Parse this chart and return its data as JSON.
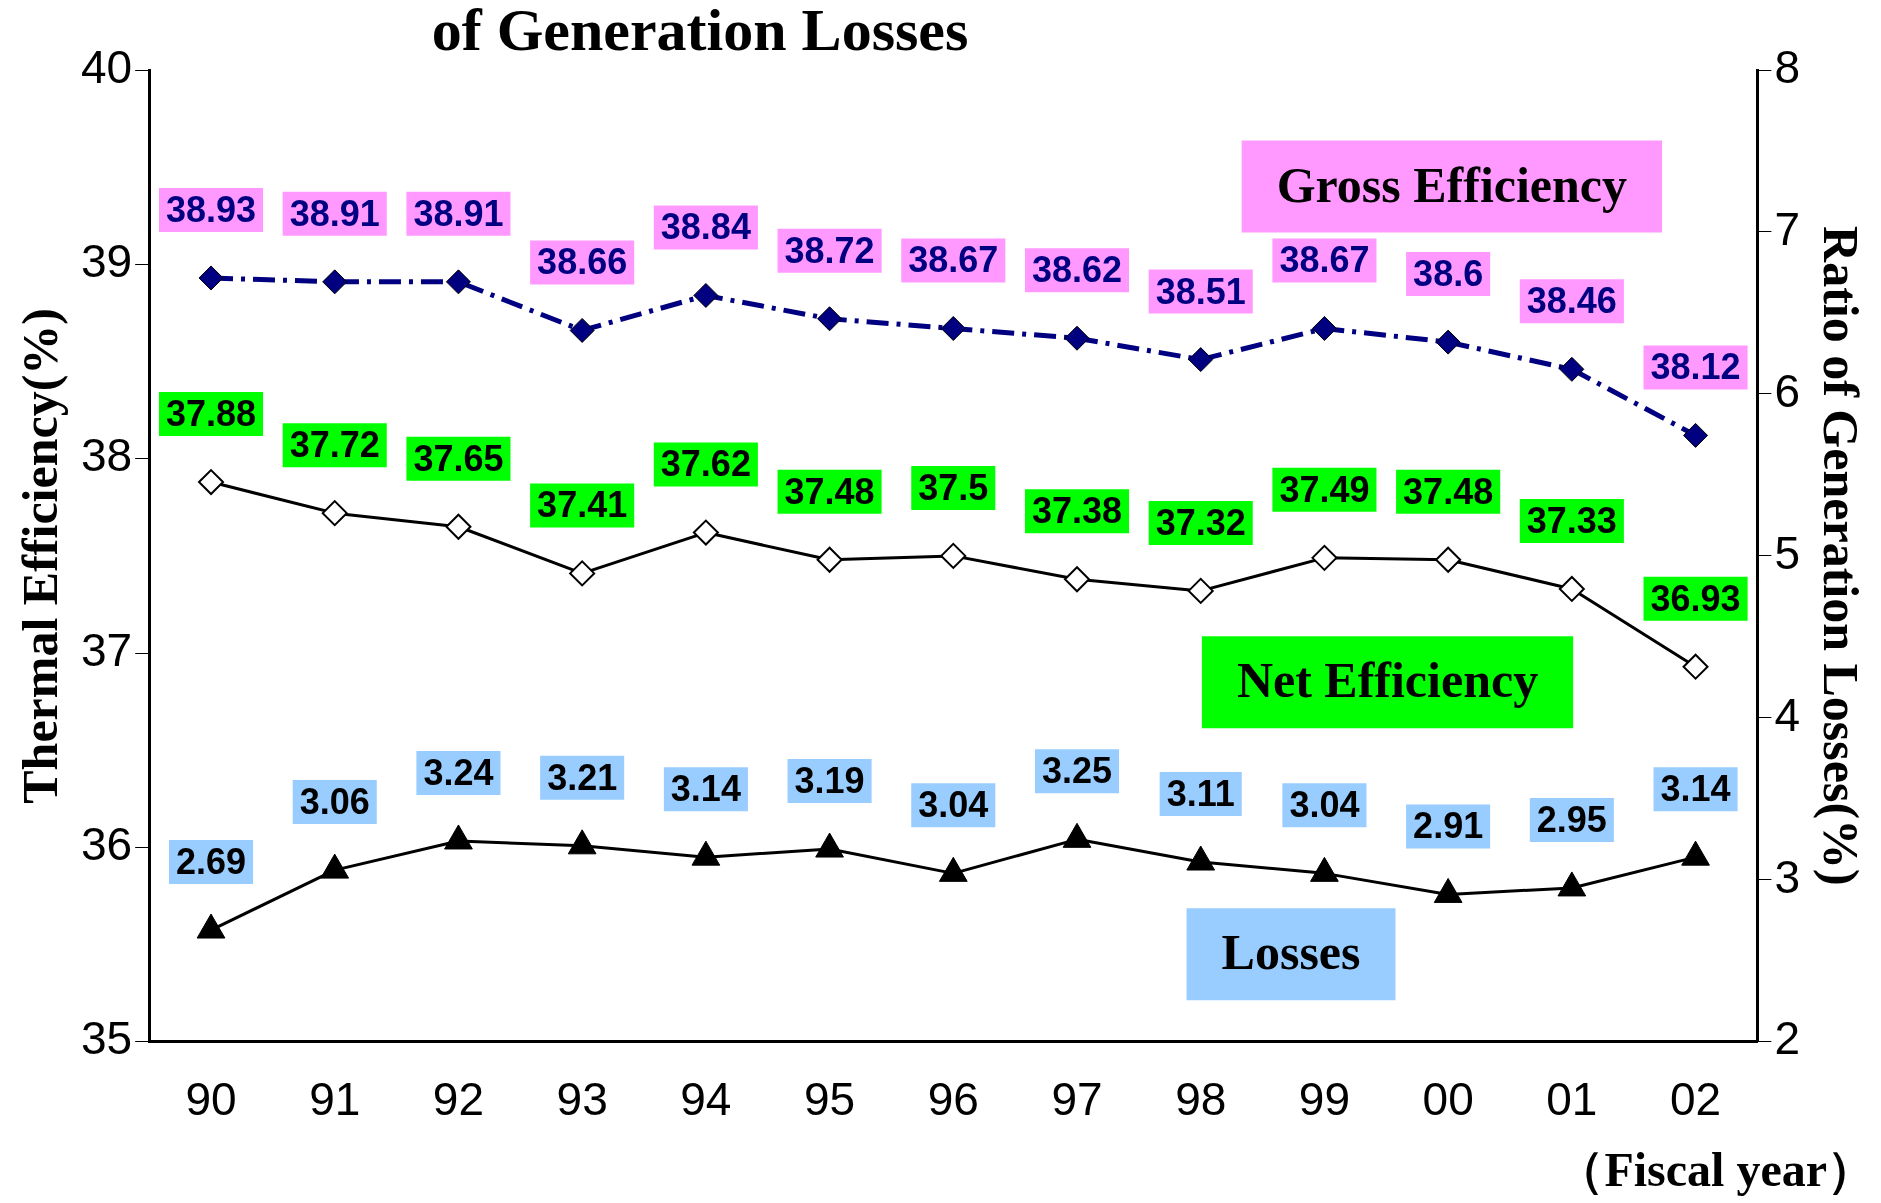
{
  "chart_data": {
    "type": "line",
    "title": "of Generation Losses",
    "xlabel": "（Fiscal year）",
    "ylabel": "Thermal Efficiency(%)",
    "y2label": "Ratio of Generation Losses(%)",
    "categories": [
      "90",
      "91",
      "92",
      "93",
      "94",
      "95",
      "96",
      "97",
      "98",
      "99",
      "00",
      "01",
      "02"
    ],
    "series": [
      {
        "name": "Gross Efficiency",
        "color": "#000080",
        "marker": "diamond",
        "line_style": "dashed",
        "values": [
          38.93,
          38.91,
          38.91,
          38.66,
          38.84,
          38.72,
          38.67,
          38.62,
          38.51,
          38.67,
          38.6,
          38.46,
          38.12
        ]
      },
      {
        "name": "Net Efficiency",
        "color": "#000000",
        "marker": "diamond",
        "line_style": "solid",
        "values": [
          37.88,
          37.72,
          37.65,
          37.41,
          37.62,
          37.48,
          37.5,
          37.38,
          37.32,
          37.49,
          37.48,
          37.33,
          36.93
        ]
      },
      {
        "name": "Losses",
        "color": "#000000",
        "marker": "triangle",
        "line_style": "solid",
        "axis": "y2",
        "values": [
          2.69,
          3.06,
          3.24,
          3.21,
          3.14,
          3.19,
          3.04,
          3.25,
          3.11,
          3.04,
          2.91,
          2.95,
          3.14
        ]
      }
    ],
    "ylim": [
      35,
      40
    ],
    "yticks": [
      35,
      36,
      37,
      38,
      39,
      40
    ],
    "y2lim": [
      2,
      8
    ],
    "y2ticks": [
      2,
      3,
      4,
      5,
      6,
      7,
      8
    ],
    "data_labels": true,
    "legend": false,
    "grid": false
  }
}
